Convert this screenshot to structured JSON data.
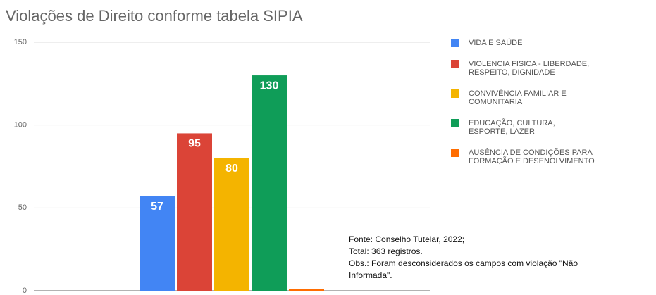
{
  "chart_data": {
    "type": "bar",
    "title": "Violações de Direito conforme tabela SIPIA",
    "categories": [
      null
    ],
    "series": [
      {
        "name": "VIDA E SAÚDE",
        "color": "#4285f4",
        "values": [
          57
        ],
        "value_labels": [
          "57"
        ]
      },
      {
        "name": "VIOLENCIA FISICA - LIBERDADE, RESPEITO, DIGNIDADE",
        "color": "#db4437",
        "values": [
          95
        ],
        "value_labels": [
          "95"
        ]
      },
      {
        "name": "CONVIVÊNCIA FAMILIAR E COMUNITARIA",
        "color": "#f4b400",
        "values": [
          80
        ],
        "value_labels": [
          "80"
        ]
      },
      {
        "name": "EDUCAÇÃO,  CULTURA, ESPORTE,  LAZER",
        "color": "#0f9d58",
        "values": [
          130
        ],
        "value_labels": [
          "130"
        ]
      },
      {
        "name": "AUSÊNCIA DE CONDIÇÕES PARA FORMAÇÃO E DESENOLVIMENTO",
        "color": "#ff6d01",
        "values": [
          1
        ],
        "value_labels": [
          null
        ]
      }
    ],
    "ylim": [
      0,
      150
    ],
    "yticks": [
      0,
      50,
      100,
      150
    ],
    "grid": true,
    "legend": "right",
    "annotations": [
      "Fonte: Conselho Tutelar, 2022;",
      "Total: 363 registros.",
      "Obs.: Foram desconsiderados os campos com violação \"Não",
      "Informada\"."
    ]
  }
}
